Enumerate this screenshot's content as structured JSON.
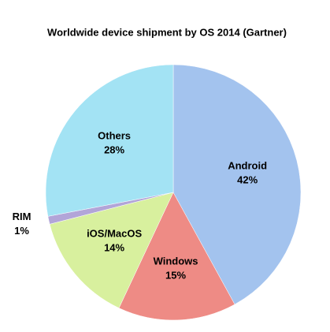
{
  "chart_data": {
    "type": "pie",
    "title": "Worldwide device shipment by OS 2014 (Gartner)",
    "categories": [
      "Android",
      "Windows",
      "iOS/MacOS",
      "RIM",
      "Others"
    ],
    "values": [
      42,
      15,
      14,
      1,
      28
    ],
    "value_labels": [
      "42%",
      "15%",
      "14%",
      "1%",
      "28%"
    ],
    "colors": [
      "#a3c3ee",
      "#ee8b85",
      "#d8f09e",
      "#b2a5d8",
      "#a3e3f4"
    ]
  }
}
